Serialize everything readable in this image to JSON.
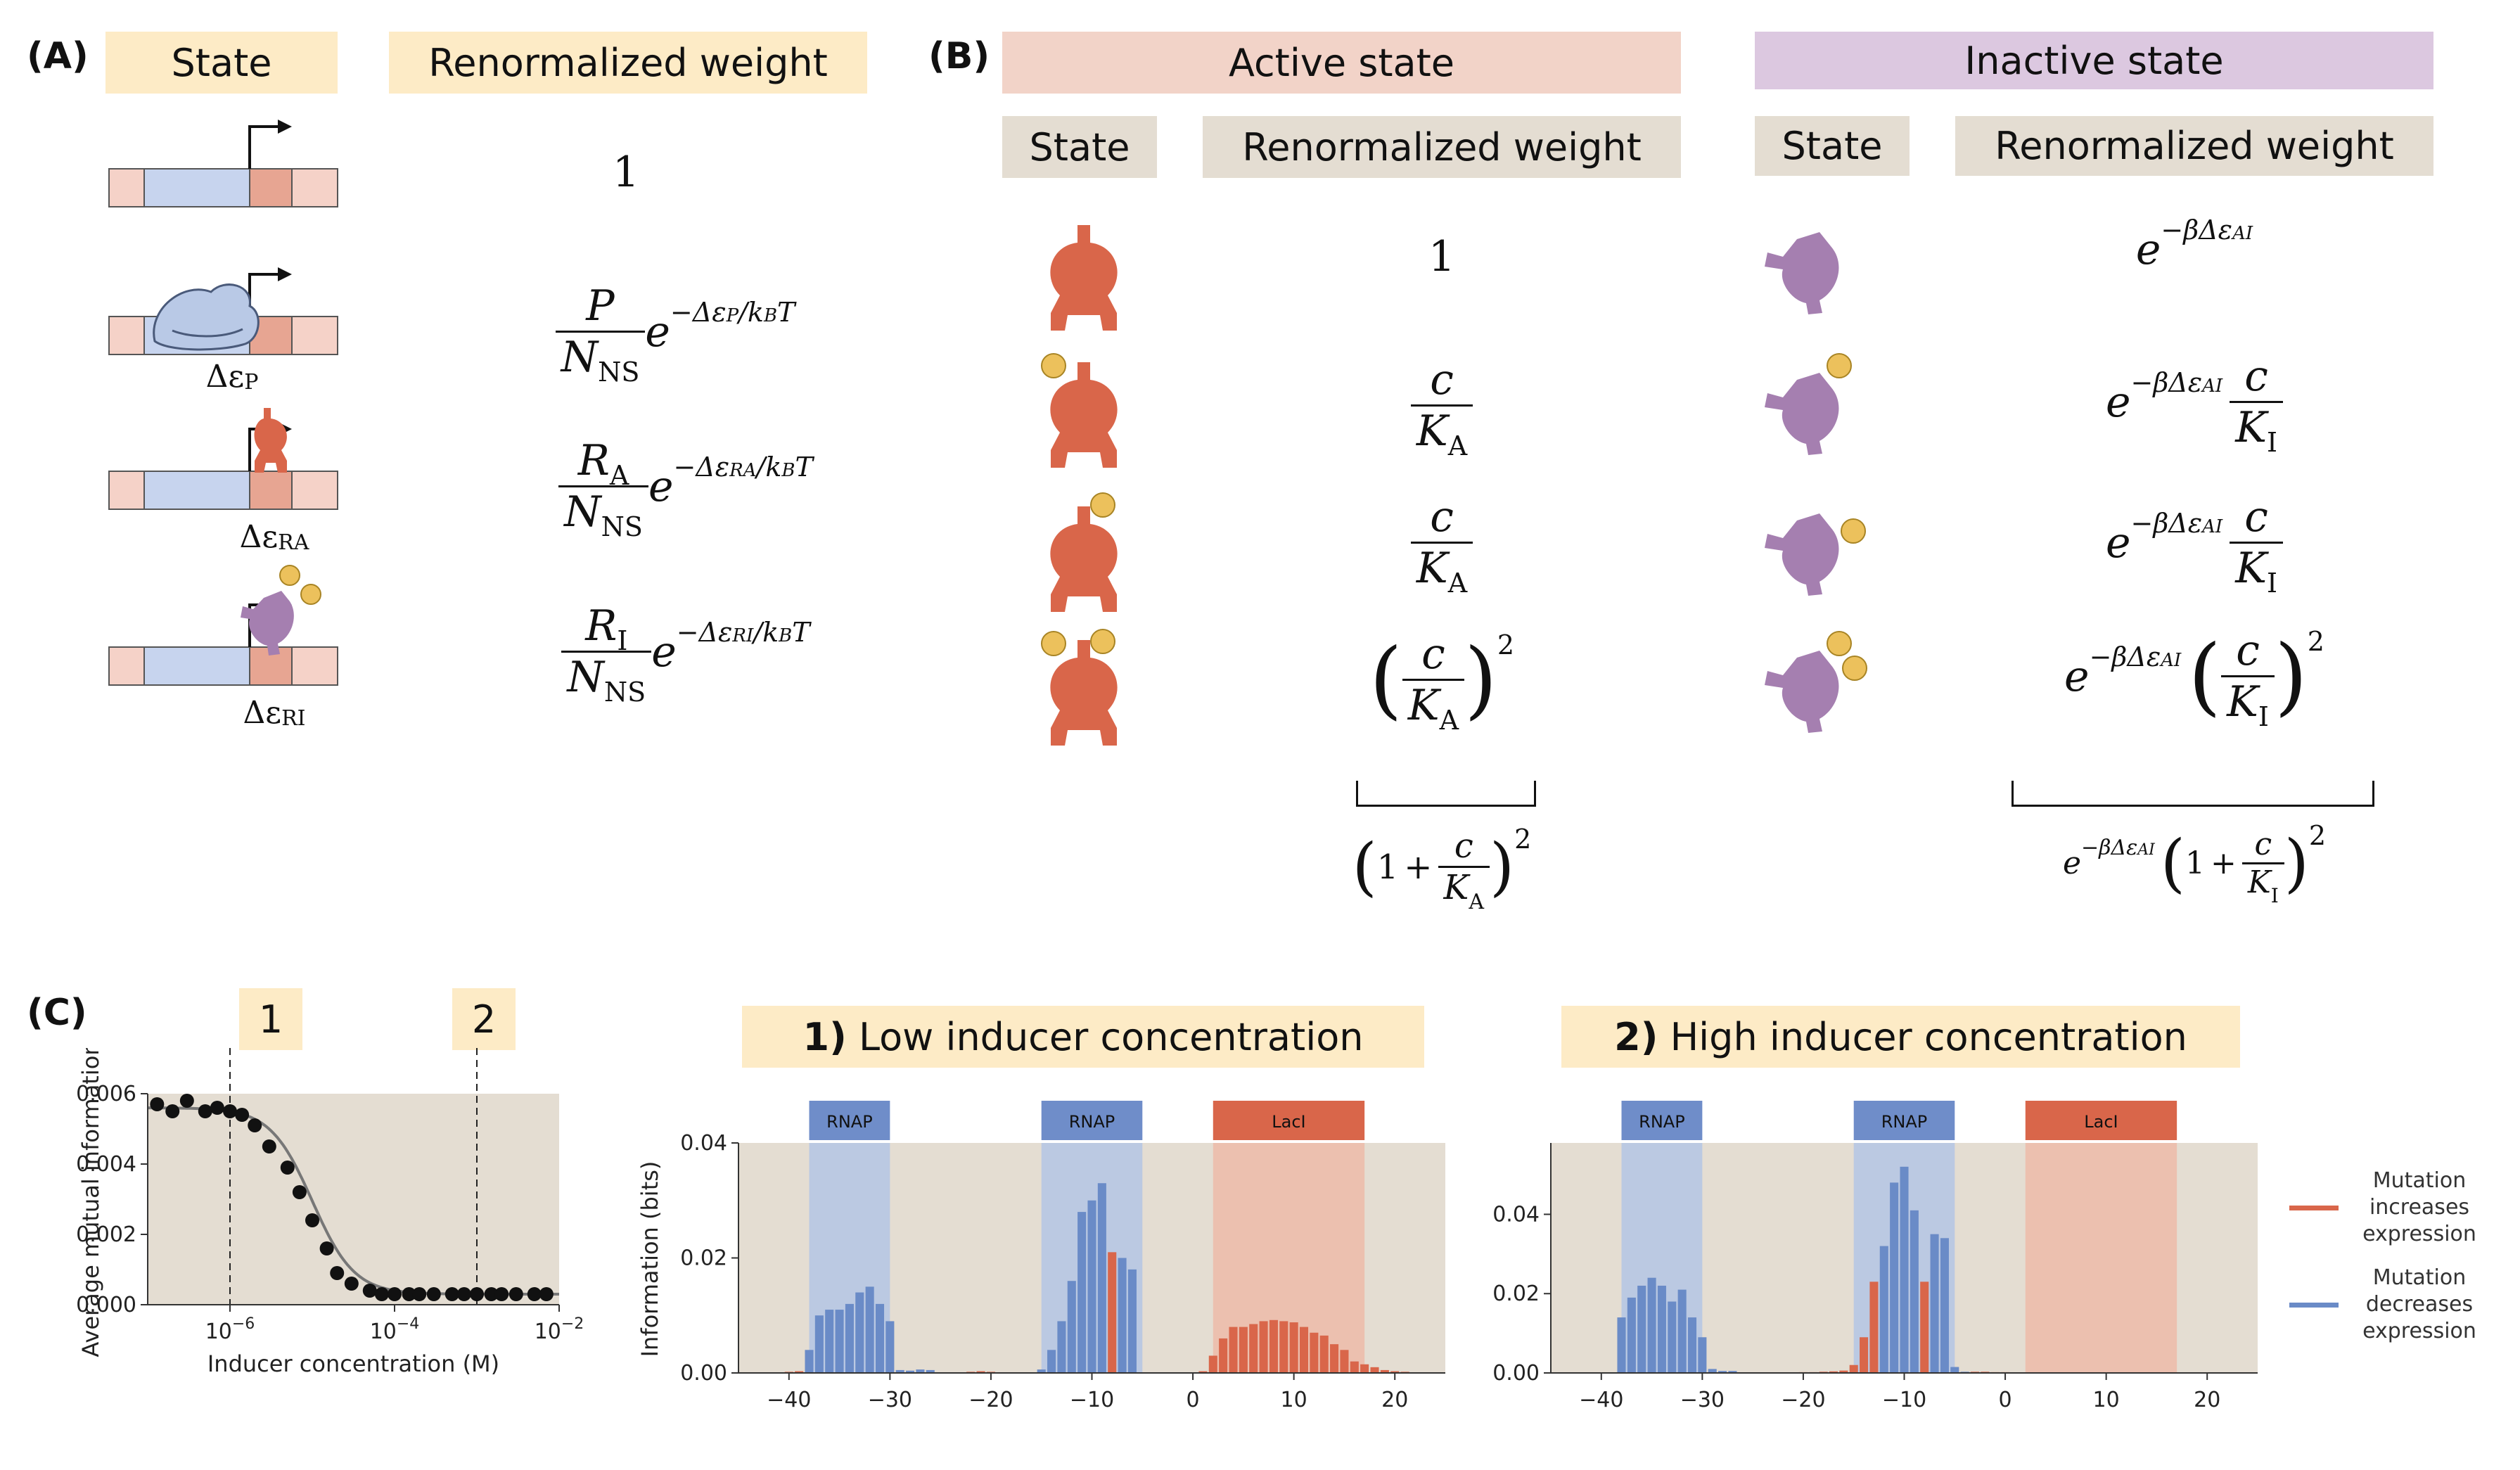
{
  "panelA": {
    "label": "(A)",
    "header_state": "State",
    "header_weight": "Renormalized weight",
    "rows": [
      {
        "weight": "1",
        "energy": ""
      },
      {
        "num": "P",
        "den": "N",
        "den_sub": "NS",
        "exp": "−Δε",
        "exp_sub": "P",
        "exp_tail": "/k",
        "exp_tail_sub": "B",
        "exp_T": "T",
        "energy": "Δε",
        "energy_sub": "P"
      },
      {
        "num": "R",
        "num_sub": "A",
        "den": "N",
        "den_sub": "NS",
        "exp": "−Δε",
        "exp_sub": "RA",
        "exp_tail": "/k",
        "exp_tail_sub": "B",
        "exp_T": "T",
        "energy": "Δε",
        "energy_sub": "RA"
      },
      {
        "num": "R",
        "num_sub": "I",
        "den": "N",
        "den_sub": "NS",
        "exp": "−Δε",
        "exp_sub": "RI",
        "exp_tail": "/k",
        "exp_tail_sub": "B",
        "exp_T": "T",
        "energy": "Δε",
        "energy_sub": "RI"
      }
    ],
    "e": "e"
  },
  "panelB": {
    "label": "(B)",
    "active_title": "Active state",
    "inactive_title": "Inactive state",
    "state_label": "State",
    "weight_label": "Renormalized weight",
    "active": {
      "w1": "1",
      "c": "c",
      "K": "K",
      "Ksub": "A",
      "sq": "2",
      "sum_one": "1",
      "plus": "+"
    },
    "inactive": {
      "e": "e",
      "exp": "−βΔε",
      "exp_sub": "AI",
      "c": "c",
      "K": "K",
      "Ksub": "I",
      "sq": "2",
      "sum_one": "1",
      "plus": "+"
    }
  },
  "panelC": {
    "label": "(C)",
    "marker1": "1",
    "marker2": "2",
    "title_low": "1) Low inducer concentration",
    "title_low_num": "1)",
    "title_low_text": "Low inducer concentration",
    "title_high_num": "2)",
    "title_high_text": "High inducer concentration",
    "legend_increase": [
      "Mutation",
      "increases",
      "expression"
    ],
    "legend_decrease": [
      "Mutation",
      "decreases",
      "expression"
    ],
    "colors": {
      "red": "#d9664a",
      "blue": "#6a8bc7",
      "bg": "#e4ddd2",
      "blueShade": "#b6c7e3",
      "redShade": "#ecbcab",
      "boxBlue": "#6f8dc9",
      "boxRed": "#d9664a"
    }
  },
  "chart_data": [
    {
      "type": "scatter",
      "xlabel": "Inducer concentration (M)",
      "ylabel": "Average mutual information",
      "xscale": "log",
      "xlim": [
        1e-07,
        0.01
      ],
      "ylim": [
        0,
        0.006
      ],
      "xticks": [
        "10^{-6}",
        "10^{-4}",
        "10^{-2}"
      ],
      "yticks": [
        "0.000",
        "0.002",
        "0.004",
        "0.006"
      ],
      "vlines": [
        1e-06,
        0.001
      ],
      "x": [
        1.3e-07,
        2e-07,
        3e-07,
        5e-07,
        7e-07,
        1e-06,
        1.4e-06,
        2e-06,
        3e-06,
        5e-06,
        7e-06,
        1e-05,
        1.5e-05,
        2e-05,
        3e-05,
        5e-05,
        7e-05,
        0.0001,
        0.00015,
        0.0002,
        0.0003,
        0.0005,
        0.0007,
        0.001,
        0.0015,
        0.002,
        0.003,
        0.005,
        0.007
      ],
      "y": [
        0.0057,
        0.0055,
        0.0058,
        0.0055,
        0.0056,
        0.0055,
        0.0054,
        0.0051,
        0.0045,
        0.0039,
        0.0032,
        0.0024,
        0.0016,
        0.0009,
        0.0006,
        0.0004,
        0.0003,
        0.0003,
        0.0003,
        0.0003,
        0.0003,
        0.0003,
        0.0003,
        0.0003,
        0.0003,
        0.0003,
        0.0003,
        0.0003,
        0.0003
      ],
      "fit": true
    },
    {
      "type": "bar",
      "title": "1) Low inducer concentration",
      "ylabel": "Information (bits)",
      "xlim": [
        -45,
        25
      ],
      "ylim": [
        0,
        0.04
      ],
      "xticks": [
        -40,
        -30,
        -20,
        -10,
        0,
        10,
        20
      ],
      "yticks": [
        "0.00",
        "0.02",
        "0.04"
      ],
      "regions": [
        {
          "label": "RNAP",
          "from": -38,
          "to": -30,
          "kind": "blue"
        },
        {
          "label": "RNAP",
          "from": -15,
          "to": -5,
          "kind": "blue"
        },
        {
          "label": "LacI",
          "from": 2,
          "to": 17,
          "kind": "red"
        }
      ],
      "positions": [
        -42,
        -41,
        -40,
        -39,
        -38,
        -37,
        -36,
        -35,
        -34,
        -33,
        -32,
        -31,
        -30,
        -29,
        -28,
        -27,
        -26,
        -25,
        -24,
        -23,
        -22,
        -21,
        -20,
        -19,
        -18,
        -17,
        -16,
        -15,
        -14,
        -13,
        -12,
        -11,
        -10,
        -9,
        -8,
        -7,
        -6,
        -5,
        -4,
        -3,
        -2,
        -1,
        0,
        1,
        2,
        3,
        4,
        5,
        6,
        7,
        8,
        9,
        10,
        11,
        12,
        13,
        14,
        15,
        16,
        17,
        18,
        19,
        20,
        21,
        22
      ],
      "values": [
        0,
        0,
        0.0002,
        0.0003,
        0.004,
        0.01,
        0.011,
        0.011,
        0.012,
        0.014,
        0.015,
        0.012,
        0.009,
        0.0005,
        0.0004,
        0.0006,
        0.0005,
        0,
        0,
        0,
        0.0002,
        0.0003,
        0.0002,
        0,
        0,
        0,
        0,
        0.0006,
        0.004,
        0.009,
        0.016,
        0.028,
        0.03,
        0.033,
        0.021,
        0.02,
        0.018,
        0,
        0,
        0,
        0,
        0,
        0,
        0.0003,
        0.003,
        0.006,
        0.008,
        0.008,
        0.0085,
        0.009,
        0.0092,
        0.009,
        0.0088,
        0.008,
        0.007,
        0.0065,
        0.005,
        0.004,
        0.002,
        0.0015,
        0.001,
        0.0005,
        0.0003,
        0.0002,
        0
      ],
      "sign": [
        "r",
        "r",
        "r",
        "r",
        "b",
        "b",
        "b",
        "b",
        "b",
        "b",
        "b",
        "b",
        "b",
        "b",
        "b",
        "b",
        "b",
        "r",
        "r",
        "r",
        "r",
        "r",
        "r",
        "r",
        "r",
        "r",
        "r",
        "b",
        "b",
        "b",
        "b",
        "b",
        "b",
        "b",
        "r",
        "b",
        "b",
        "b",
        "r",
        "r",
        "r",
        "r",
        "r",
        "r",
        "r",
        "r",
        "r",
        "r",
        "r",
        "r",
        "r",
        "r",
        "r",
        "r",
        "r",
        "r",
        "r",
        "r",
        "r",
        "r",
        "r",
        "r",
        "r",
        "r",
        "r"
      ]
    },
    {
      "type": "bar",
      "title": "2) High inducer concentration",
      "xlim": [
        -45,
        25
      ],
      "ylim": [
        0,
        0.058
      ],
      "xticks": [
        -40,
        -30,
        -20,
        -10,
        0,
        10,
        20
      ],
      "yticks": [
        "0.00",
        "0.02",
        "0.04"
      ],
      "regions": [
        {
          "label": "RNAP",
          "from": -38,
          "to": -30,
          "kind": "blue"
        },
        {
          "label": "RNAP",
          "from": -15,
          "to": -5,
          "kind": "blue"
        },
        {
          "label": "LacI",
          "from": 2,
          "to": 17,
          "kind": "red"
        }
      ],
      "positions": [
        -42,
        -41,
        -40,
        -39,
        -38,
        -37,
        -36,
        -35,
        -34,
        -33,
        -32,
        -31,
        -30,
        -29,
        -28,
        -27,
        -26,
        -25,
        -24,
        -23,
        -22,
        -21,
        -20,
        -19,
        -18,
        -17,
        -16,
        -15,
        -14,
        -13,
        -12,
        -11,
        -10,
        -9,
        -8,
        -7,
        -6,
        -5,
        -4,
        -3,
        -2,
        -1,
        0,
        1,
        2,
        3,
        4,
        5,
        6,
        7,
        8,
        9,
        10,
        11,
        12,
        13,
        14,
        15,
        16,
        17,
        18,
        19,
        20,
        21,
        22
      ],
      "values": [
        0,
        0,
        0,
        0,
        0.014,
        0.019,
        0.022,
        0.024,
        0.022,
        0.018,
        0.021,
        0.014,
        0.009,
        0.001,
        0.0005,
        0.0005,
        0,
        0,
        0,
        0,
        0,
        0,
        0.0002,
        0.0002,
        0.0003,
        0.0004,
        0.0006,
        0.002,
        0.009,
        0.023,
        0.032,
        0.048,
        0.052,
        0.041,
        0.023,
        0.035,
        0.034,
        0.0015,
        0.0003,
        0.0003,
        0.0003,
        0.0002,
        0.0002,
        0,
        0,
        0,
        0,
        0,
        0,
        0,
        0,
        0,
        0,
        0,
        0,
        0,
        0,
        0,
        0,
        0,
        0,
        0,
        0,
        0,
        0
      ],
      "sign": [
        "r",
        "r",
        "r",
        "r",
        "b",
        "b",
        "b",
        "b",
        "b",
        "b",
        "b",
        "b",
        "b",
        "b",
        "b",
        "b",
        "b",
        "r",
        "r",
        "r",
        "r",
        "r",
        "r",
        "r",
        "r",
        "r",
        "r",
        "r",
        "r",
        "r",
        "b",
        "b",
        "b",
        "b",
        "r",
        "b",
        "b",
        "b",
        "b",
        "r",
        "r",
        "r",
        "r",
        "r",
        "r",
        "r",
        "r",
        "r",
        "r",
        "r",
        "r",
        "r",
        "r",
        "r",
        "r",
        "r",
        "r",
        "r",
        "r",
        "r",
        "r",
        "r",
        "r",
        "r",
        "r"
      ]
    }
  ]
}
